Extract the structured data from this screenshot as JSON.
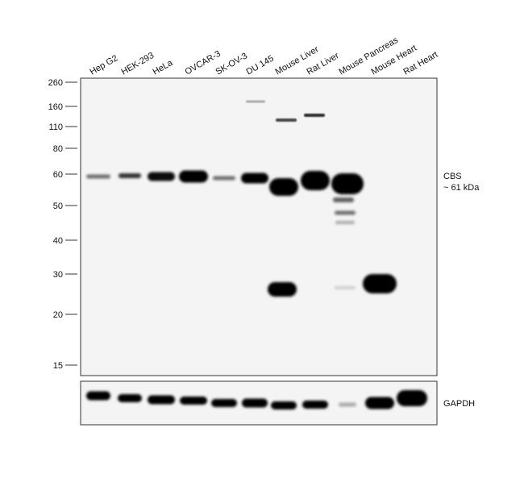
{
  "lanes": [
    "Hep G2",
    "HEK-293",
    "HeLa",
    "OVCAR-3",
    "SK-OV-3",
    "DU 145",
    "Mouse Liver",
    "Rat Liver",
    "Mouse Pancreas",
    "Mouse Heart",
    "Rat Heart"
  ],
  "markers": [
    260,
    160,
    110,
    80,
    60,
    50,
    40,
    30,
    20,
    15
  ],
  "target": {
    "name": "CBS",
    "size": "~ 61 kDa"
  },
  "loading_control": "GAPDH"
}
